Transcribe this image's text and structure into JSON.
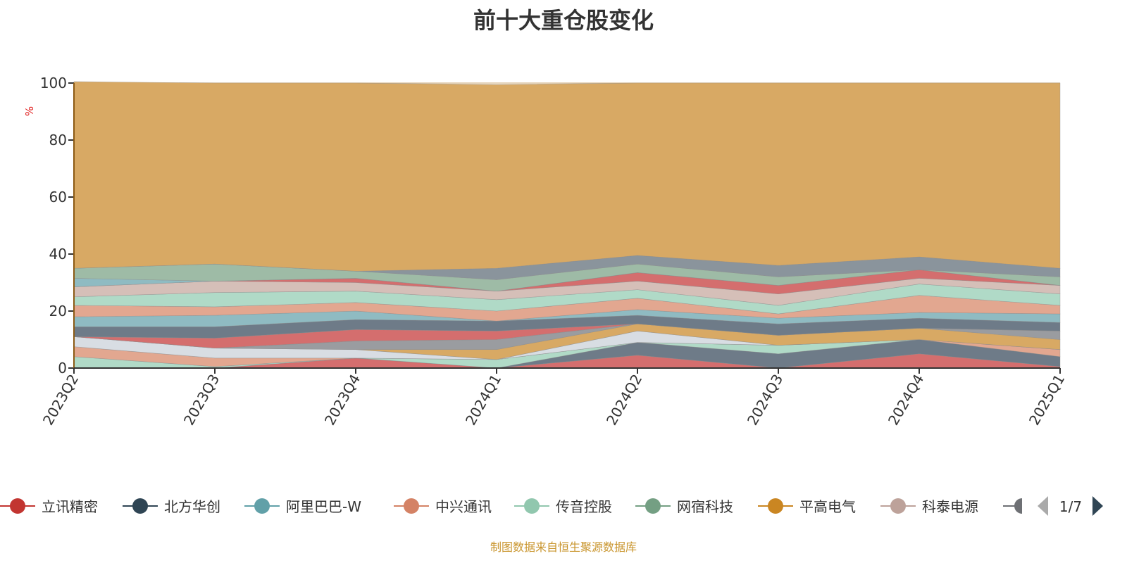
{
  "chart_data": {
    "type": "area",
    "stacked": true,
    "title": "前十大重仓股变化",
    "ylabel": "%",
    "xlabel": "",
    "ylim": [
      0,
      100
    ],
    "yticks": [
      0,
      20,
      40,
      60,
      80,
      100
    ],
    "categories": [
      "2023Q2",
      "2023Q3",
      "2023Q4",
      "2024Q1",
      "2024Q2",
      "2024Q3",
      "2024Q4",
      "2025Q1"
    ],
    "grid": true,
    "legend_position": "bottom",
    "legend": {
      "items": [
        {
          "name": "立讯精密",
          "color": "#c23531"
        },
        {
          "name": "北方华创",
          "color": "#2f4554"
        },
        {
          "name": "阿里巴巴-W",
          "color": "#61a0a8"
        },
        {
          "name": "中兴通讯",
          "color": "#d48265"
        },
        {
          "name": "传音控股",
          "color": "#91c7ae"
        },
        {
          "name": "网宿科技",
          "color": "#749f83"
        },
        {
          "name": "平高电气",
          "color": "#ca8622"
        },
        {
          "name": "科泰电源",
          "color": "#bda29a"
        }
      ],
      "partial_item_color": "#6e7074",
      "page": "1/7"
    },
    "series": [
      {
        "color": "#d46e6e",
        "values": [
          0,
          0,
          3.5,
          0,
          4.5,
          0,
          5,
          0.5
        ]
      },
      {
        "color": "#6e7b88",
        "values": [
          0,
          0,
          0,
          0,
          4.5,
          5,
          5,
          3.5
        ]
      },
      {
        "color": "#b0dac7",
        "values": [
          4,
          0.5,
          0,
          3,
          0,
          3,
          0,
          0
        ]
      },
      {
        "color": "#e2a790",
        "values": [
          3.5,
          3,
          0,
          0,
          0,
          0,
          0,
          2.5
        ]
      },
      {
        "color": "#d8dde3",
        "values": [
          3.5,
          3.5,
          3,
          0,
          4,
          0,
          0,
          0
        ]
      },
      {
        "color": "#d8a964",
        "values": [
          0,
          0,
          0,
          3.5,
          2.5,
          3.5,
          4,
          3.5
        ]
      },
      {
        "color": "#9a9ca0",
        "values": [
          0,
          0,
          3,
          3.5,
          0,
          0,
          0,
          3
        ]
      },
      {
        "color": "#d46e6e",
        "values": [
          0,
          3.5,
          4,
          3,
          0,
          0,
          0,
          0
        ]
      },
      {
        "color": "#6e7b88",
        "values": [
          3.5,
          4,
          3.5,
          3.5,
          3,
          4,
          3.5,
          3
        ]
      },
      {
        "color": "#8fbbc2",
        "values": [
          3.5,
          4,
          3,
          0,
          2,
          2,
          2,
          3
        ]
      },
      {
        "color": "#e2a790",
        "values": [
          4,
          3,
          3,
          3.5,
          4,
          1.5,
          6,
          3
        ]
      },
      {
        "color": "#b0dac7",
        "values": [
          3,
          5,
          4,
          4,
          3,
          3,
          4,
          4
        ]
      },
      {
        "color": "#d5bfb8",
        "values": [
          3.5,
          4,
          3,
          3,
          3,
          4,
          2,
          3
        ]
      },
      {
        "color": "#d46e6e",
        "values": [
          0,
          0,
          1.5,
          0,
          3,
          3,
          3,
          0
        ]
      },
      {
        "color": "#8fbbc2",
        "values": [
          3,
          0,
          0,
          0,
          0,
          0,
          0,
          0
        ]
      },
      {
        "color": "#9ebba6",
        "values": [
          3.5,
          6,
          2.5,
          4,
          3,
          3,
          0,
          3
        ]
      },
      {
        "color": "#8a949c",
        "values": [
          0,
          0,
          0,
          4,
          3,
          4,
          4.5,
          3
        ]
      },
      {
        "color": "#d8a964",
        "values": [
          65.5,
          63.5,
          66,
          64.5,
          60.5,
          64,
          61,
          65
        ]
      }
    ]
  },
  "source_note": "制图数据来自恒生聚源数据库"
}
